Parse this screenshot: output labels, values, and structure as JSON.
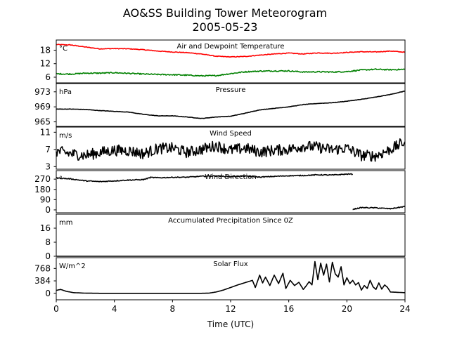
{
  "chart_data": {
    "type": "line",
    "title": "AO&SS Building Tower Meteorogram",
    "subtitle": "2005-05-23",
    "xlabel": "Time (UTC)",
    "x_ticks": [
      "0",
      "4",
      "8",
      "12",
      "16",
      "20",
      "24"
    ],
    "xlim": [
      0,
      24
    ],
    "panels": [
      {
        "id": "temp",
        "title": "Air and Dewpoint Temperature",
        "unit": "°C",
        "ylim": [
          3.5,
          22.5
        ],
        "y_ticks": [
          {
            "value": 6,
            "label": "6"
          },
          {
            "value": 12,
            "label": "12"
          },
          {
            "value": 18,
            "label": "18"
          }
        ],
        "series": [
          {
            "color": "#ff0000",
            "noise": 0.15,
            "x": [
              0,
              1,
              2,
              3,
              4,
              5,
              6,
              7,
              8,
              9,
              10,
              11,
              12,
              13,
              14,
              15,
              16,
              17,
              18,
              19,
              20,
              21,
              22,
              23,
              24
            ],
            "y": [
              20.5,
              20.3,
              19.4,
              18.6,
              18.7,
              18.6,
              18.2,
              17.6,
              17.2,
              16.9,
              16.3,
              15.3,
              15.0,
              15.2,
              15.8,
              16.3,
              16.7,
              16.3,
              16.8,
              16.6,
              17.0,
              17.3,
              17.2,
              17.6,
              17.1
            ]
          },
          {
            "color": "#008000",
            "noise": 0.25,
            "x": [
              0,
              1,
              2,
              3,
              4,
              5,
              6,
              7,
              8,
              9,
              10,
              11,
              12,
              13,
              14,
              15,
              16,
              17,
              18,
              19,
              20,
              21,
              22,
              23,
              24
            ],
            "y": [
              7.5,
              7.4,
              7.8,
              7.8,
              8.0,
              7.7,
              7.4,
              7.2,
              7.1,
              6.9,
              6.6,
              6.7,
              7.6,
              8.4,
              8.7,
              8.8,
              8.8,
              8.3,
              8.4,
              8.3,
              8.5,
              9.2,
              9.5,
              9.3,
              9.5
            ]
          }
        ]
      },
      {
        "id": "pressure",
        "title": "Pressure",
        "unit": "hPa",
        "ylim": [
          963.8,
          975.2
        ],
        "y_ticks": [
          {
            "value": 965,
            "label": "965"
          },
          {
            "value": 969,
            "label": "969"
          },
          {
            "value": 973,
            "label": "973"
          }
        ],
        "series": [
          {
            "color": "#000000",
            "noise": 0.05,
            "x": [
              0,
              1,
              2,
              3,
              4,
              5,
              6,
              7,
              8,
              9,
              10,
              11,
              12,
              13,
              14,
              15,
              16,
              17,
              18,
              19,
              20,
              21,
              22,
              23,
              24
            ],
            "y": [
              968.4,
              968.4,
              968.3,
              968.0,
              967.8,
              967.6,
              967.0,
              966.6,
              966.6,
              966.3,
              965.9,
              966.3,
              966.5,
              967.3,
              968.2,
              968.6,
              969.0,
              969.6,
              969.9,
              970.1,
              970.5,
              971.0,
              971.6,
              972.3,
              973.2
            ]
          }
        ]
      },
      {
        "id": "wind-speed",
        "title": "Wind Speed",
        "unit": "m/s",
        "ylim": [
          2.4,
          12.2
        ],
        "y_ticks": [
          {
            "value": 3,
            "label": "3"
          },
          {
            "value": 7,
            "label": "7"
          },
          {
            "value": 11,
            "label": "11"
          }
        ],
        "series": [
          {
            "color": "#000000",
            "noise": 1.3,
            "x": [
              0,
              1,
              2,
              3,
              4,
              5,
              6,
              7,
              8,
              9,
              10,
              11,
              12,
              13,
              14,
              15,
              16,
              17,
              18,
              19,
              20,
              21,
              22,
              23,
              24
            ],
            "y": [
              6.6,
              6.0,
              5.6,
              6.3,
              6.8,
              6.7,
              6.0,
              7.2,
              7.3,
              6.3,
              7.0,
              7.9,
              6.8,
              7.3,
              6.4,
              6.8,
              7.0,
              7.8,
              7.5,
              6.9,
              7.3,
              5.6,
              5.5,
              7.0,
              8.8
            ]
          }
        ]
      },
      {
        "id": "wind-direction",
        "title": "Wind Direction",
        "unit": "°",
        "ylim": [
          -25,
          345
        ],
        "y_ticks": [
          {
            "value": 0,
            "label": "0"
          },
          {
            "value": 90,
            "label": "90"
          },
          {
            "value": 180,
            "label": "180"
          },
          {
            "value": 270,
            "label": "270"
          }
        ],
        "series": [
          {
            "color": "#000000",
            "noise": 4,
            "width": 2.8,
            "x": [
              0,
              1,
              2,
              3,
              4,
              5,
              6,
              6.5,
              7,
              8,
              9,
              10,
              11,
              12,
              13,
              14,
              15,
              16,
              17,
              18,
              19,
              20,
              20.4
            ],
            "y": [
              280,
              272,
              255,
              248,
              255,
              262,
              266,
              285,
              282,
              286,
              287,
              295,
              298,
              292,
              296,
              288,
              294,
              300,
              302,
              308,
              306,
              314,
              314
            ]
          },
          {
            "color": "#000000",
            "noise": 4,
            "width": 2.8,
            "x": [
              20.4,
              21,
              22,
              23,
              24
            ],
            "y": [
              5,
              20,
              18,
              10,
              30
            ]
          }
        ]
      },
      {
        "id": "precip",
        "title": "Accumulated Precipitation Since 0Z",
        "unit": "mm",
        "ylim": [
          0,
          24
        ],
        "y_ticks": [
          {
            "value": 0,
            "label": "0"
          },
          {
            "value": 8,
            "label": "8"
          },
          {
            "value": 16,
            "label": "16"
          }
        ],
        "series": [
          {
            "color": "#000000",
            "noise": 0,
            "width": 2.4,
            "x": [
              0,
              24
            ],
            "y": [
              0,
              0
            ]
          }
        ]
      },
      {
        "id": "solar",
        "title": "Solar Flux",
        "unit": "W/m^2",
        "ylim": [
          -200,
          1100
        ],
        "y_ticks": [
          {
            "value": 0,
            "label": "0"
          },
          {
            "value": 384,
            "label": "384"
          },
          {
            "value": 768,
            "label": "768"
          }
        ],
        "series": [
          {
            "color": "#000000",
            "noise": 0,
            "x": [
              0,
              0.3,
              0.7,
              1.2,
              2,
              3,
              4,
              6,
              8,
              10,
              10.5,
              11,
              11.5,
              12,
              12.5,
              13,
              13.5,
              13.7,
              14,
              14.2,
              14.4,
              14.7,
              15,
              15.3,
              15.6,
              15.8,
              16.1,
              16.4,
              16.7,
              17,
              17.2,
              17.4,
              17.6,
              17.8,
              18,
              18.2,
              18.4,
              18.6,
              18.8,
              19,
              19.2,
              19.4,
              19.6,
              19.8,
              20,
              20.2,
              20.4,
              20.6,
              20.8,
              21,
              21.2,
              21.4,
              21.6,
              21.8,
              22,
              22.2,
              22.4,
              22.6,
              22.8,
              23,
              23.5,
              24
            ],
            "y": [
              90,
              120,
              60,
              20,
              5,
              0,
              0,
              0,
              0,
              0,
              5,
              40,
              100,
              180,
              260,
              330,
              400,
              180,
              560,
              320,
              500,
              240,
              560,
              300,
              620,
              150,
              400,
              240,
              340,
              120,
              230,
              360,
              260,
              980,
              420,
              930,
              560,
              900,
              350,
              960,
              600,
              500,
              820,
              260,
              480,
              300,
              400,
              260,
              330,
              100,
              240,
              150,
              400,
              200,
              120,
              320,
              130,
              260,
              180,
              40,
              30,
              20
            ]
          }
        ]
      }
    ]
  }
}
